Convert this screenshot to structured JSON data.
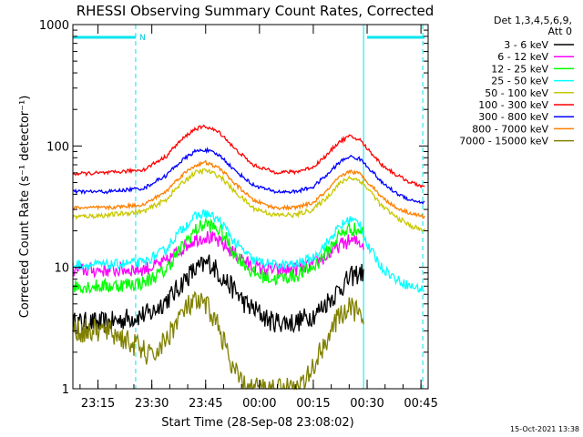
{
  "chart_data": {
    "type": "line",
    "title": "RHESSI Observing Summary Count Rates, Corrected",
    "xlabel": "Start Time (28-Sep-08 23:08:02)",
    "ylabel": "Corrected Count Rate (s⁻¹ detector⁻¹)",
    "y_scale": "log",
    "ylim": [
      1,
      1000
    ],
    "y_ticks": [
      {
        "value": 1,
        "label": "1"
      },
      {
        "value": 10,
        "label": "10"
      },
      {
        "value": 100,
        "label": "100"
      },
      {
        "value": 1000,
        "label": "1000"
      }
    ],
    "x_range_min": [
      0,
      99
    ],
    "x_ticks": [
      {
        "min": 7,
        "label": "23:15"
      },
      {
        "min": 22,
        "label": "23:30"
      },
      {
        "min": 37,
        "label": "23:45"
      },
      {
        "min": 52,
        "label": "00:00"
      },
      {
        "min": 67,
        "label": "00:15"
      },
      {
        "min": 82,
        "label": "00:30"
      },
      {
        "min": 97,
        "label": "00:45"
      }
    ],
    "legend_header": [
      "Det 1,3,4,5,6,9,",
      "Att 0"
    ],
    "legend_position": "right",
    "series": [
      {
        "name": "3 - 6 keV",
        "color": "#000000",
        "x": [
          0,
          10,
          22,
          28,
          33,
          38,
          42,
          48,
          55,
          62,
          68,
          73,
          76,
          78,
          80,
          81
        ],
        "values": [
          3.5,
          3.5,
          4.2,
          6,
          9,
          11,
          8,
          5,
          3.6,
          3.5,
          4.2,
          6,
          7.5,
          8.5,
          9,
          9
        ]
      },
      {
        "name": "6 - 12 keV",
        "color": "#ff00ff",
        "x": [
          0,
          10,
          20,
          26,
          30,
          34,
          37,
          41,
          45,
          50,
          56,
          62,
          67,
          71,
          74,
          77,
          80,
          81
        ],
        "values": [
          9.5,
          9.5,
          9.7,
          11,
          14,
          17,
          18,
          16,
          13,
          10,
          9.5,
          9.6,
          10.5,
          12.5,
          15,
          16.5,
          16,
          15.5
        ]
      },
      {
        "name": "12 - 25 keV",
        "color": "#00ff00",
        "x": [
          0,
          10,
          20,
          26,
          30,
          34,
          37,
          41,
          45,
          50,
          56,
          62,
          67,
          71,
          74,
          77,
          80,
          81
        ],
        "values": [
          7,
          7,
          7.5,
          9.5,
          14,
          20,
          23,
          20,
          13,
          9,
          8,
          8.5,
          10,
          13.5,
          18,
          21,
          20,
          19
        ]
      },
      {
        "name": "25 - 50 keV",
        "color": "#00ffff",
        "x": [
          0,
          10,
          20,
          26,
          30,
          34,
          37,
          41,
          45,
          50,
          56,
          62,
          67,
          71,
          74,
          77,
          80,
          82,
          86,
          90,
          94,
          98
        ],
        "values": [
          10.5,
          10.5,
          11,
          14,
          20,
          26,
          28,
          24,
          16,
          11.5,
          10.5,
          10.5,
          12,
          16,
          21,
          25,
          23,
          15,
          10,
          8,
          7,
          6.5
        ]
      },
      {
        "name": "50 - 100 keV",
        "color": "#c8c800",
        "x": [
          0,
          10,
          20,
          26,
          30,
          34,
          37,
          41,
          45,
          50,
          56,
          62,
          67,
          71,
          74,
          77,
          80,
          82,
          86,
          90,
          94,
          98
        ],
        "values": [
          26,
          27,
          29,
          36,
          48,
          60,
          63,
          56,
          42,
          31,
          27,
          27,
          30,
          38,
          48,
          55,
          52,
          45,
          32,
          26,
          22,
          20
        ]
      },
      {
        "name": "100 - 300 keV",
        "color": "#ff0000",
        "x": [
          0,
          10,
          20,
          26,
          30,
          34,
          37,
          41,
          45,
          50,
          56,
          62,
          67,
          71,
          74,
          77,
          80,
          82,
          86,
          90,
          94,
          98
        ],
        "values": [
          59,
          60,
          64,
          82,
          110,
          138,
          145,
          128,
          95,
          70,
          61,
          61,
          67,
          85,
          107,
          120,
          112,
          95,
          70,
          58,
          50,
          46
        ]
      },
      {
        "name": "300 - 800 keV",
        "color": "#0000ff",
        "x": [
          0,
          10,
          20,
          26,
          30,
          34,
          37,
          41,
          45,
          50,
          56,
          62,
          67,
          71,
          74,
          77,
          80,
          82,
          86,
          90,
          94,
          98
        ],
        "values": [
          42,
          42,
          45,
          57,
          74,
          90,
          93,
          83,
          63,
          48,
          42,
          42,
          46,
          58,
          72,
          82,
          78,
          68,
          50,
          41,
          36,
          34
        ]
      },
      {
        "name": "800 - 7000 keV",
        "color": "#ff8000",
        "x": [
          0,
          10,
          20,
          26,
          30,
          34,
          37,
          41,
          45,
          50,
          56,
          62,
          67,
          71,
          74,
          77,
          80,
          82,
          86,
          90,
          94,
          98
        ],
        "values": [
          31,
          31,
          33,
          42,
          56,
          69,
          73,
          65,
          49,
          36,
          31,
          31,
          34,
          43,
          54,
          62,
          59,
          51,
          38,
          31,
          28,
          26
        ]
      },
      {
        "name": "7000 - 15000 keV",
        "color": "#808000",
        "x": [
          0,
          10,
          22,
          26,
          30,
          33,
          36,
          38,
          41,
          44,
          48,
          52,
          58,
          63,
          66,
          69,
          72,
          76,
          79,
          81
        ],
        "values": [
          3,
          3,
          1.8,
          2.5,
          4,
          5,
          5,
          4.5,
          3,
          1.5,
          1,
          1,
          1,
          1,
          1.3,
          2,
          3,
          4.5,
          4.5,
          3
        ]
      }
    ],
    "annotations": {
      "attenuator_bars": [
        {
          "start": 0,
          "end": 17.5
        },
        {
          "start": 82,
          "end": 98
        }
      ],
      "attenuator_label": "N",
      "dashed_markers": [
        17.5,
        97.5
      ],
      "solid_markers": [
        0,
        81
      ]
    }
  },
  "footer": {
    "timestamp": "15-Oct-2021 13:38"
  }
}
